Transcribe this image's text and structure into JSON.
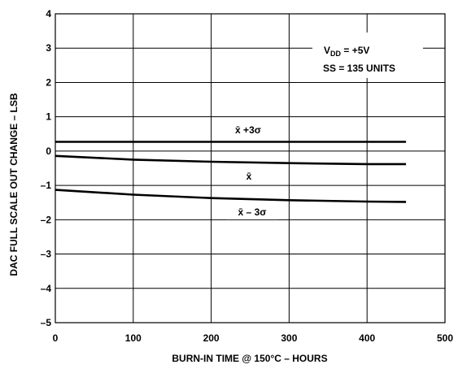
{
  "chart_data": {
    "type": "line",
    "xlabel": "BURN-IN TIME @ 150°C – HOURS",
    "ylabel": "DAC FULL SCALE OUT CHANGE – LSB",
    "xlim": [
      0,
      500
    ],
    "ylim": [
      -5,
      4
    ],
    "xticks": [
      0,
      100,
      200,
      300,
      400,
      500
    ],
    "yticks": [
      -5,
      -4,
      -3,
      -2,
      -1,
      0,
      1,
      2,
      3,
      4
    ],
    "xtick_labels": [
      "0",
      "100",
      "200",
      "300",
      "400",
      "500"
    ],
    "ytick_labels": [
      "–5",
      "–4",
      "–3",
      "–2",
      "–1",
      "0",
      "1",
      "2",
      "3",
      "4"
    ],
    "grid": true,
    "series": [
      {
        "name": "x̄ +3σ",
        "x": [
          0,
          100,
          200,
          300,
          400,
          450
        ],
        "values": [
          0.27,
          0.27,
          0.27,
          0.27,
          0.27,
          0.27
        ]
      },
      {
        "name": "x̄",
        "x": [
          0,
          100,
          200,
          300,
          400,
          450
        ],
        "values": [
          -0.14,
          -0.25,
          -0.31,
          -0.35,
          -0.38,
          -0.38
        ]
      },
      {
        "name": "x̄ – 3σ",
        "x": [
          0,
          100,
          200,
          300,
          400,
          450
        ],
        "values": [
          -1.13,
          -1.27,
          -1.37,
          -1.43,
          -1.47,
          -1.48
        ]
      }
    ],
    "conditions": {
      "vdd_main": "V",
      "vdd_sub": "DD",
      "vdd_value": " = +5V",
      "ss": "SS = 135 UNITS"
    }
  }
}
